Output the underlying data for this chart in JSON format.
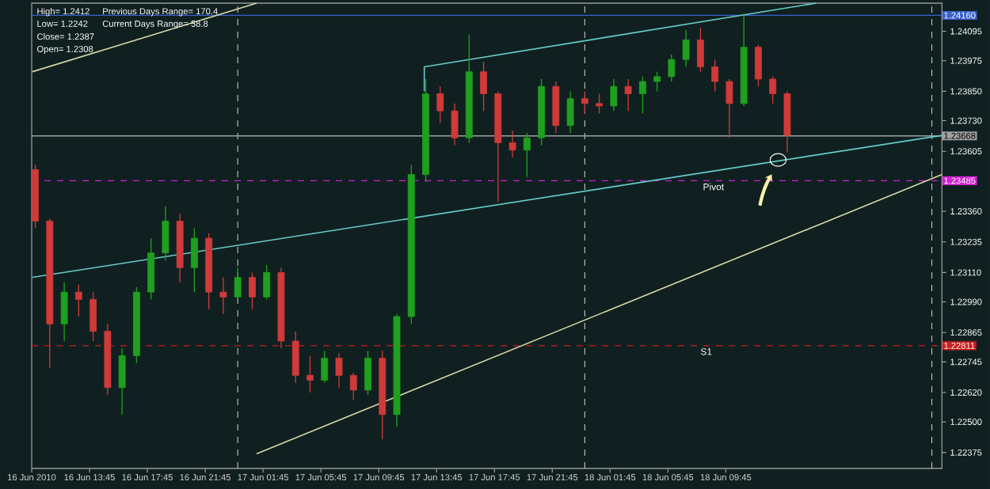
{
  "chart_data": {
    "type": "candlestick",
    "x": [
      "2010-06-16T10:00",
      "2010-06-16T11:00",
      "2010-06-16T12:00",
      "2010-06-16T13:00",
      "2010-06-16T14:00",
      "2010-06-16T15:00",
      "2010-06-16T16:00",
      "2010-06-16T17:00",
      "2010-06-16T18:00",
      "2010-06-16T19:00",
      "2010-06-16T20:00",
      "2010-06-16T21:00",
      "2010-06-16T22:00",
      "2010-06-16T23:00",
      "2010-06-17T00:00",
      "2010-06-17T01:00",
      "2010-06-17T02:00",
      "2010-06-17T03:00",
      "2010-06-17T04:00",
      "2010-06-17T05:00",
      "2010-06-17T06:00",
      "2010-06-17T07:00",
      "2010-06-17T08:00",
      "2010-06-17T09:00",
      "2010-06-17T10:00",
      "2010-06-17T11:00",
      "2010-06-17T12:00",
      "2010-06-17T13:00",
      "2010-06-17T14:00",
      "2010-06-17T15:00",
      "2010-06-17T16:00",
      "2010-06-17T17:00",
      "2010-06-17T18:00",
      "2010-06-17T19:00",
      "2010-06-17T20:00",
      "2010-06-17T21:00",
      "2010-06-17T22:00",
      "2010-06-17T23:00",
      "2010-06-18T00:00",
      "2010-06-18T01:00",
      "2010-06-18T02:00",
      "2010-06-18T03:00",
      "2010-06-18T04:00",
      "2010-06-18T05:00",
      "2010-06-18T06:00",
      "2010-06-18T07:00",
      "2010-06-18T08:00",
      "2010-06-18T09:00",
      "2010-06-18T10:00",
      "2010-06-18T11:00",
      "2010-06-18T12:00",
      "2010-06-18T13:00",
      "2010-06-18T14:00"
    ],
    "ohlc": [
      [
        1.2353,
        1.2355,
        1.2329,
        1.2332
      ],
      [
        1.2332,
        1.2333,
        1.2272,
        1.229
      ],
      [
        1.229,
        1.2307,
        1.2283,
        1.2303
      ],
      [
        1.2303,
        1.2306,
        1.2293,
        1.23
      ],
      [
        1.23,
        1.2303,
        1.2283,
        1.2287
      ],
      [
        1.2287,
        1.229,
        1.2261,
        1.2264
      ],
      [
        1.2264,
        1.228,
        1.2253,
        1.2277
      ],
      [
        1.2277,
        1.2305,
        1.2274,
        1.2303
      ],
      [
        1.2303,
        1.2325,
        1.23,
        1.2319
      ],
      [
        1.2319,
        1.2338,
        1.2316,
        1.2332
      ],
      [
        1.2332,
        1.2335,
        1.2307,
        1.2313
      ],
      [
        1.2313,
        1.2329,
        1.2303,
        1.2325
      ],
      [
        1.2325,
        1.2327,
        1.2296,
        1.2303
      ],
      [
        1.2303,
        1.2309,
        1.2294,
        1.2301
      ],
      [
        1.2301,
        1.2313,
        1.23,
        1.2309
      ],
      [
        1.2309,
        1.2311,
        1.2296,
        1.2301
      ],
      [
        1.2301,
        1.2314,
        1.23,
        1.2311
      ],
      [
        1.2311,
        1.2313,
        1.228,
        1.2283
      ],
      [
        1.2283,
        1.2287,
        1.2266,
        1.2269
      ],
      [
        1.2269,
        1.2277,
        1.2262,
        1.2267
      ],
      [
        1.2267,
        1.2279,
        1.2266,
        1.2276
      ],
      [
        1.2276,
        1.2278,
        1.2264,
        1.2269
      ],
      [
        1.2269,
        1.227,
        1.2259,
        1.2263
      ],
      [
        1.2263,
        1.2279,
        1.2261,
        1.2276
      ],
      [
        1.2276,
        1.2279,
        1.2243,
        1.2253
      ],
      [
        1.2253,
        1.2294,
        1.2248,
        1.2293
      ],
      [
        1.2293,
        1.2355,
        1.229,
        1.2351
      ],
      [
        1.2351,
        1.239,
        1.2348,
        1.2384
      ],
      [
        1.2384,
        1.2387,
        1.2372,
        1.2377
      ],
      [
        1.2377,
        1.238,
        1.2363,
        1.2366
      ],
      [
        1.2366,
        1.2408,
        1.2364,
        1.2393
      ],
      [
        1.2393,
        1.2397,
        1.2377,
        1.2384
      ],
      [
        1.2384,
        1.2385,
        1.234,
        1.2364
      ],
      [
        1.2364,
        1.2369,
        1.2358,
        1.2361
      ],
      [
        1.2361,
        1.2368,
        1.235,
        1.2366
      ],
      [
        1.2366,
        1.239,
        1.2363,
        1.2387
      ],
      [
        1.2387,
        1.2389,
        1.2368,
        1.2371
      ],
      [
        1.2371,
        1.2385,
        1.2368,
        1.2382
      ],
      [
        1.2382,
        1.2385,
        1.2376,
        1.238
      ],
      [
        1.238,
        1.2384,
        1.2376,
        1.2379
      ],
      [
        1.2379,
        1.239,
        1.2377,
        1.2387
      ],
      [
        1.2387,
        1.239,
        1.2377,
        1.2384
      ],
      [
        1.2384,
        1.2391,
        1.2376,
        1.2389
      ],
      [
        1.2389,
        1.2393,
        1.2385,
        1.2391
      ],
      [
        1.2391,
        1.24,
        1.2389,
        1.2398
      ],
      [
        1.2398,
        1.241,
        1.2395,
        1.2406
      ],
      [
        1.2406,
        1.2411,
        1.2393,
        1.2395
      ],
      [
        1.2395,
        1.2398,
        1.2385,
        1.2389
      ],
      [
        1.2389,
        1.239,
        1.2366,
        1.238
      ],
      [
        1.238,
        1.2416,
        1.2379,
        1.2403
      ],
      [
        1.2403,
        1.2404,
        1.2387,
        1.239
      ],
      [
        1.239,
        1.2391,
        1.238,
        1.2384
      ],
      [
        1.2384,
        1.2385,
        1.236,
        1.2367
      ]
    ],
    "colors": [
      "#d03a3a",
      "#d03a3a",
      "#1fa01f",
      "#d03a3a",
      "#d03a3a",
      "#d03a3a",
      "#1fa01f",
      "#1fa01f",
      "#1fa01f",
      "#1fa01f",
      "#d03a3a",
      "#1fa01f",
      "#d03a3a",
      "#d03a3a",
      "#1fa01f",
      "#d03a3a",
      "#1fa01f",
      "#d03a3a",
      "#d03a3a",
      "#d03a3a",
      "#1fa01f",
      "#d03a3a",
      "#d03a3a",
      "#1fa01f",
      "#d03a3a",
      "#1fa01f",
      "#1fa01f",
      "#1fa01f",
      "#d03a3a",
      "#d03a3a",
      "#1fa01f",
      "#d03a3a",
      "#d03a3a",
      "#d03a3a",
      "#1fa01f",
      "#1fa01f",
      "#d03a3a",
      "#1fa01f",
      "#d03a3a",
      "#d03a3a",
      "#1fa01f",
      "#d03a3a",
      "#1fa01f",
      "#1fa01f",
      "#1fa01f",
      "#1fa01f",
      "#d03a3a",
      "#d03a3a",
      "#d03a3a",
      "#1fa01f",
      "#d03a3a",
      "#d03a3a",
      "#d03a3a"
    ],
    "series": [
      {
        "type": "line",
        "color": "#66cccc",
        "x": [
          "2010-06-16T09:48",
          "2010-06-19T00:42"
        ],
        "values": [
          1.2309,
          1.2367
        ]
      },
      {
        "type": "line",
        "color": "#66cccc",
        "x": [
          "2010-06-17T12:54",
          "2010-06-17T12:54",
          "2010-06-18T16:00"
        ],
        "values": [
          1.2385,
          1.2395,
          1.2421
        ]
      },
      {
        "type": "line",
        "color": "#d8d8a8",
        "x": [
          "2010-06-16T09:48",
          "2010-06-17T01:18"
        ],
        "values": [
          1.2393,
          1.2421
        ]
      },
      {
        "type": "line",
        "color": "#d8d8a8",
        "x": [
          "2010-06-17T01:18",
          "2010-06-19T00:42"
        ],
        "values": [
          1.2237,
          1.2351
        ]
      }
    ],
    "xlim": [
      "2010-06-16T09:45",
      "2010-06-19T00:42"
    ],
    "ylim": [
      1.2231,
      1.2421
    ],
    "xticks": [
      {
        "value": "2010-06-16T09:45",
        "label": "16 Jun 2010"
      },
      {
        "value": "2010-06-16T13:45",
        "label": "16 Jun 13:45"
      },
      {
        "value": "2010-06-16T17:45",
        "label": "16 Jun 17:45"
      },
      {
        "value": "2010-06-16T21:45",
        "label": "16 Jun 21:45"
      },
      {
        "value": "2010-06-17T01:45",
        "label": "17 Jun 01:45"
      },
      {
        "value": "2010-06-17T05:45",
        "label": "17 Jun 05:45"
      },
      {
        "value": "2010-06-17T09:45",
        "label": "17 Jun 09:45"
      },
      {
        "value": "2010-06-17T13:45",
        "label": "17 Jun 13:45"
      },
      {
        "value": "2010-06-17T17:45",
        "label": "17 Jun 17:45"
      },
      {
        "value": "2010-06-17T21:45",
        "label": "17 Jun 21:45"
      },
      {
        "value": "2010-06-18T01:45",
        "label": "18 Jun 01:45"
      },
      {
        "value": "2010-06-18T05:45",
        "label": "18 Jun 05:45"
      },
      {
        "value": "2010-06-18T09:45",
        "label": "18 Jun 09:45"
      }
    ],
    "yticks": [
      1.22375,
      {
        "value": 1.225,
        "label": "1.22500"
      },
      {
        "value": 1.2262,
        "label": "1.22620"
      },
      1.22745,
      1.22865,
      {
        "value": 1.2299,
        "label": "1.22990"
      },
      {
        "value": 1.2311,
        "label": "1.23110"
      },
      1.23235,
      {
        "value": 1.2336,
        "label": "1.23360"
      },
      1.23605,
      {
        "value": 1.2373,
        "label": "1.23730"
      },
      {
        "value": 1.2385,
        "label": "1.23850"
      },
      1.23975,
      1.24095
    ],
    "ref_lines": [
      {
        "axis": "x",
        "value": "2010-06-17T00:00",
        "color": "#c8c8c8",
        "line_style": "dashed"
      },
      {
        "axis": "x",
        "value": "2010-06-18T00:00",
        "color": "#c8c8c8",
        "line_style": "dashed"
      },
      {
        "axis": "x",
        "value": "2010-06-19T00:00",
        "color": "#c8c8c8",
        "line_style": "dashed"
      },
      {
        "axis": "y",
        "value": 1.2416,
        "label": "1.24160",
        "color": "#3a5fcd",
        "line_style": "solid"
      },
      {
        "axis": "y",
        "value": 1.23668,
        "label": "1.23668",
        "color": "#a0a0a0",
        "line_style": "solid"
      },
      {
        "axis": "y",
        "value": 1.23485,
        "label": "1.23485",
        "color": "#d020d0",
        "line_style": "dashed"
      },
      {
        "axis": "y",
        "value": 1.22811,
        "label": "1.22811",
        "color": "#c81e1e",
        "line_style": "dashed"
      }
    ],
    "annotations": [
      "High= 1.2412",
      "Previous Days Range= 170.4",
      "Low= 1.2242",
      "Current Days Range= 58.8",
      "Close= 1.2387",
      "Open= 1.2308",
      {
        "text": "Pivot",
        "x": "2010-06-18T08:54",
        "y": 1.23485
      },
      {
        "text": "S1",
        "x": "2010-06-18T08:24",
        "y": 1.22811
      }
    ]
  }
}
